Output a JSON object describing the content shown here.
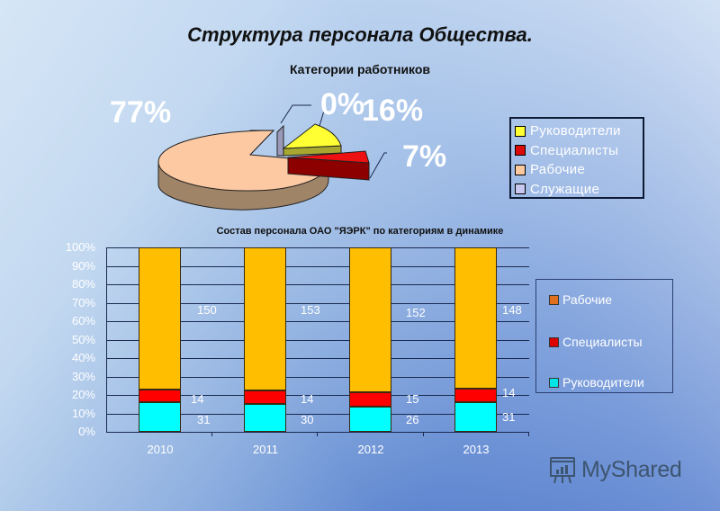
{
  "page": {
    "title": "Структура персонала Общества.",
    "watermark": "MyShared"
  },
  "chart_data": [
    {
      "type": "pie",
      "title": "Категории работников",
      "style": "3d-exploded",
      "categories": [
        "Руководители",
        "Специалисты",
        "Рабочие",
        "Служащие"
      ],
      "values": [
        16,
        7,
        77,
        0
      ],
      "value_labels": [
        "16%",
        "7%",
        "77%",
        "0%"
      ],
      "colors": [
        "#ffff33",
        "#dd0a0a",
        "#fcc8a0",
        "#9a9ab8"
      ],
      "legend_position": "right"
    },
    {
      "type": "bar",
      "stacked": "percent",
      "title": "Состав персонала ОАО \"ЯЭРК\" по категориям в динамике",
      "categories": [
        "2010",
        "2011",
        "2012",
        "2013"
      ],
      "series": [
        {
          "name": "Руководители",
          "values": [
            31,
            30,
            26,
            31
          ],
          "color": "#00ffff"
        },
        {
          "name": "Специалисты",
          "values": [
            14,
            14,
            15,
            14
          ],
          "color": "#ff0000"
        },
        {
          "name": "Рабочие",
          "values": [
            150,
            153,
            152,
            148
          ],
          "color": "#ffbf00"
        }
      ],
      "yticks": [
        "0%",
        "10%",
        "20%",
        "30%",
        "40%",
        "50%",
        "60%",
        "70%",
        "80%",
        "90%",
        "100%"
      ],
      "ylim": [
        0,
        100
      ],
      "xlabel": "",
      "ylabel": "",
      "grid": true,
      "legend_position": "right",
      "legend_order": [
        "Рабочие",
        "Специалисты",
        "Руководители"
      ],
      "legend_colors": [
        "#e07020",
        "#dd0000",
        "#00e6e6"
      ]
    }
  ]
}
